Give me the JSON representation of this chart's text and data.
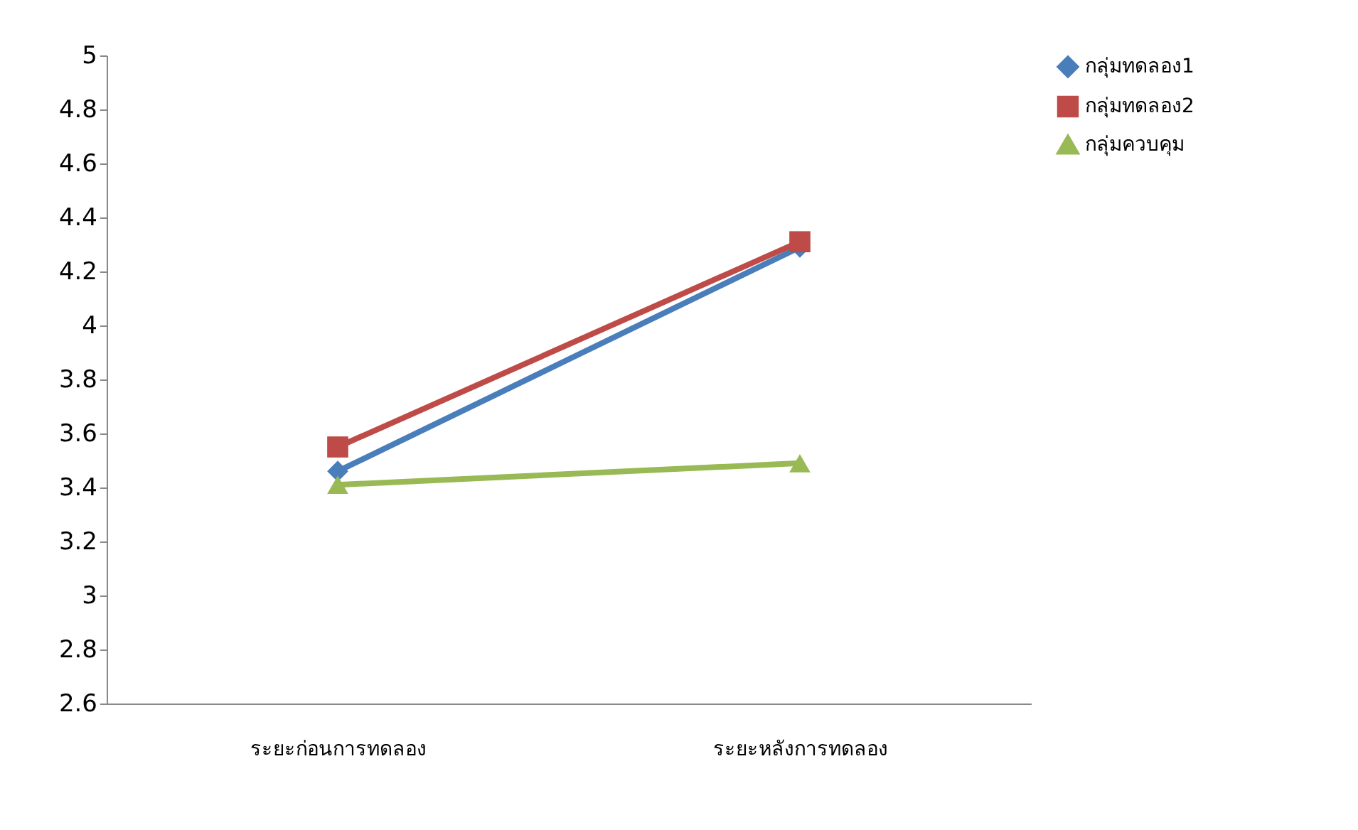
{
  "chart_data": {
    "type": "line",
    "categories": [
      "ระยะก่อนการทดลอง",
      "ระยะหลังการทดลอง"
    ],
    "series": [
      {
        "name": "กลุ่มทดลอง1",
        "color": "#4a7ebb",
        "values": [
          3.46,
          4.29
        ],
        "marker": "diamond"
      },
      {
        "name": "กลุ่มทดลอง2",
        "color": "#be4b48",
        "values": [
          3.55,
          4.31
        ],
        "marker": "square"
      },
      {
        "name": "กลุ่มควบคุม",
        "color": "#98b954",
        "values": [
          3.41,
          3.49
        ],
        "marker": "triangle"
      }
    ],
    "ylim": [
      2.6,
      5
    ],
    "yticks": [
      2.6,
      2.8,
      3,
      3.2,
      3.4,
      3.6,
      3.8,
      4,
      4.2,
      4.4,
      4.6,
      4.8,
      5
    ],
    "grid": false,
    "legend": "right",
    "line_style": "solid"
  }
}
